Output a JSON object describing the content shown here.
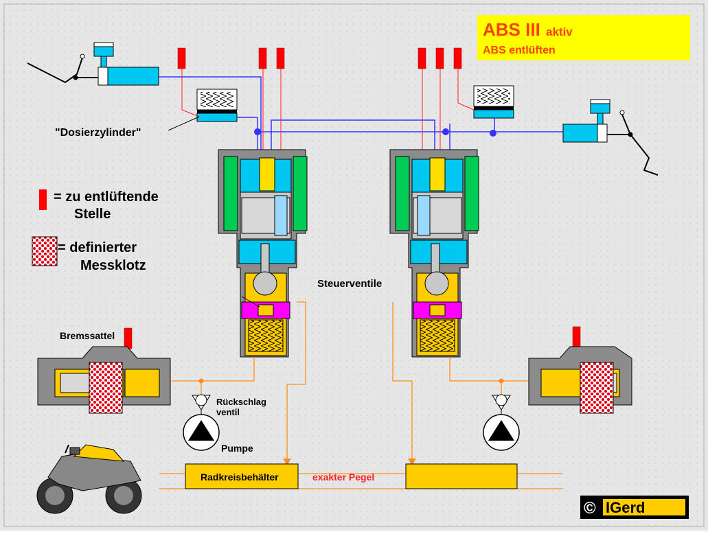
{
  "title": {
    "main": "ABS III",
    "status": "aktiv",
    "subtitle": "ABS entlüften"
  },
  "legend": {
    "bleed_symbol_label": "=  zu entlüftende",
    "bleed_symbol_label2": "Stelle",
    "pad_symbol_label": "=  definierter",
    "pad_symbol_label2": "Messklotz"
  },
  "labels": {
    "dosing_cylinder": "\"Dosierzylinder\"",
    "control_valves": "Steuerventile",
    "brake_caliper": "Bremssattel",
    "check_valve_1": "Rückschlag",
    "check_valve_2": "ventil",
    "pump": "Pumpe",
    "reservoir": "Radkreisbehälter",
    "exact_level": "exakter Pegel"
  },
  "copyright": {
    "symbol": "©",
    "author": "IGerd"
  },
  "colors": {
    "background": "#e8e8e8",
    "title_box": "#ffff00",
    "title_text": "#ff4000",
    "bleed_red": "#ff0000",
    "brake_line": "#3333ff",
    "return_line": "#ff8c1a",
    "housing": "#8c8c8c",
    "coil_green": "#00cc55",
    "fluid_cyan": "#00c8f0",
    "valve_yellow": "#ffdd00",
    "seat_magenta": "#ff00ff",
    "reservoir_yellow": "#ffcc00"
  }
}
